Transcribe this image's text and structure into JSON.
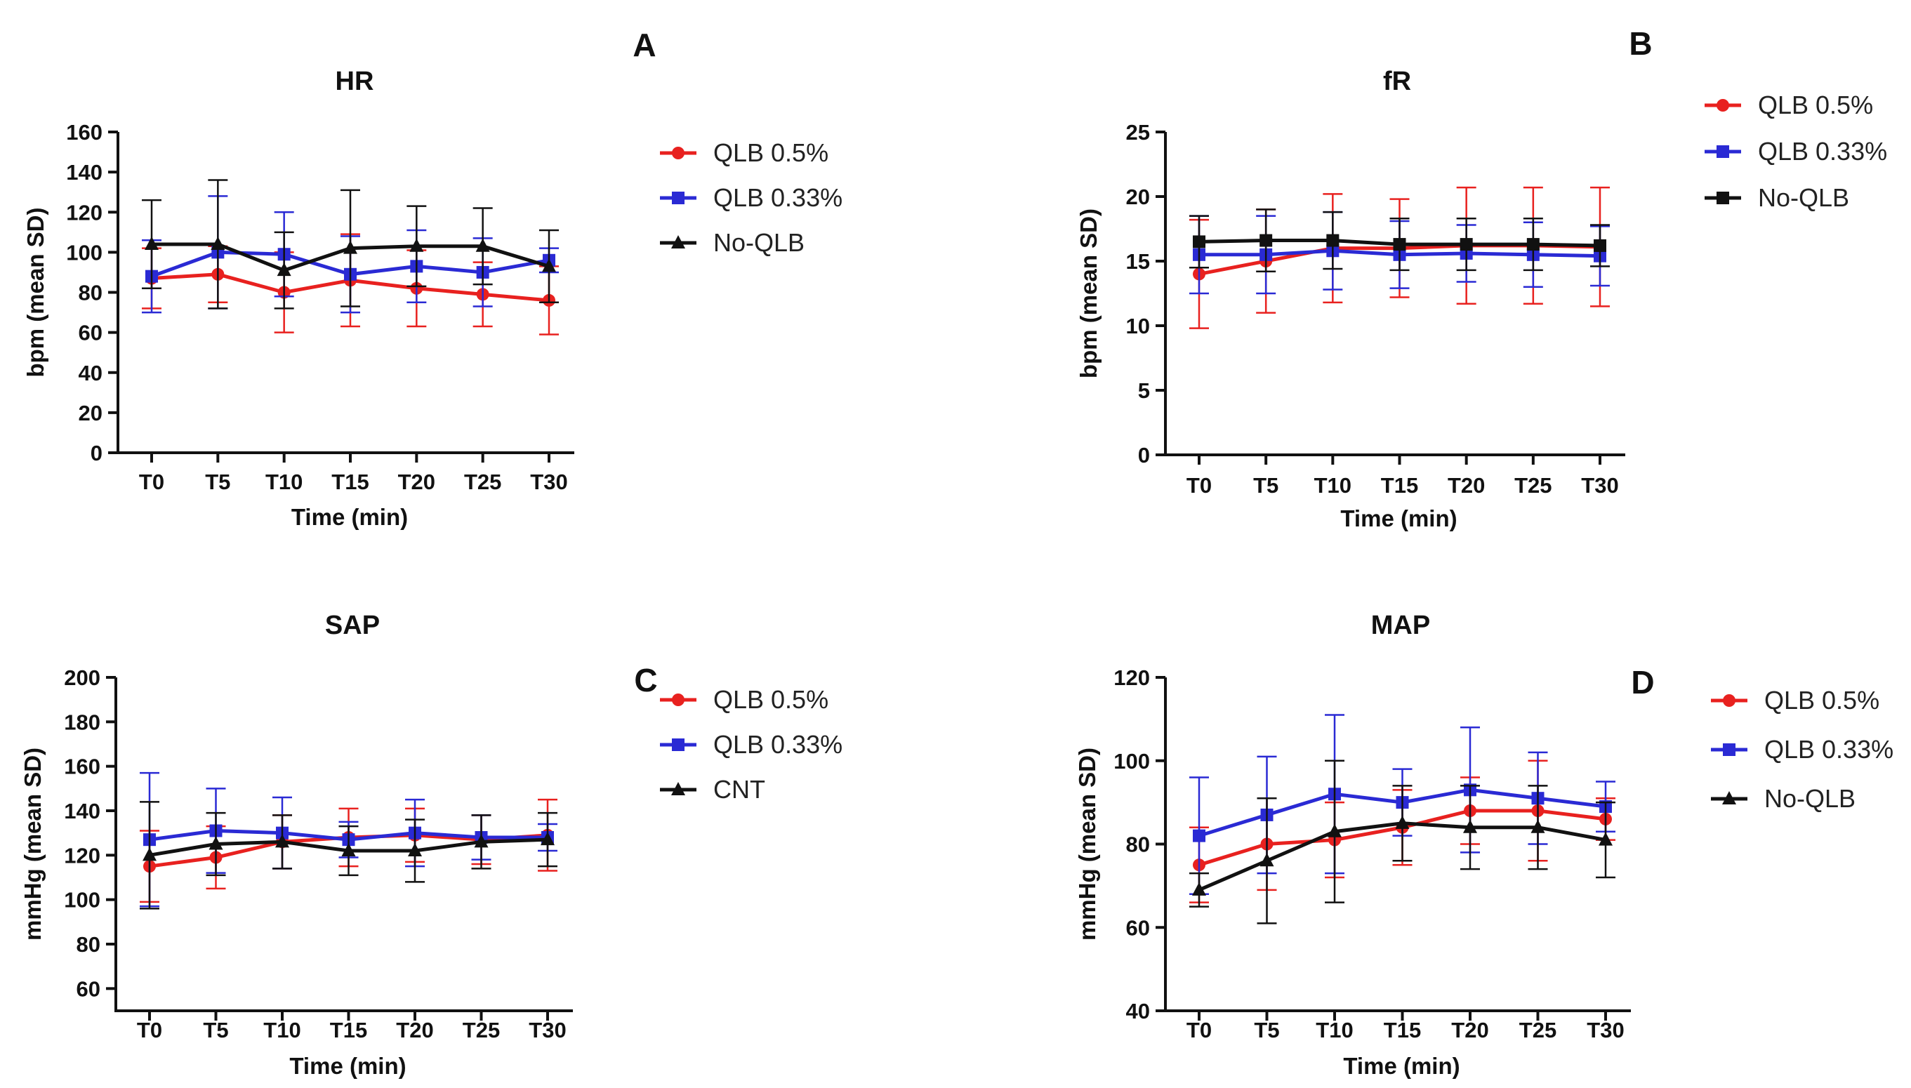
{
  "chart_data": [
    {
      "type": "line",
      "panel_letter": "A",
      "title": "HR",
      "xlabel": "Time (min)",
      "ylabel": "bpm (mean SD)",
      "categories": [
        "T0",
        "T5",
        "T10",
        "T15",
        "T20",
        "T25",
        "T30"
      ],
      "ylim": [
        0,
        160
      ],
      "yticks": [
        0,
        20,
        40,
        60,
        80,
        100,
        120,
        140,
        160
      ],
      "series": [
        {
          "name": "QLB 0.5%",
          "color": "#e8211f",
          "marker": "circle",
          "values": [
            87,
            89,
            80,
            86,
            82,
            79,
            76
          ],
          "sd": [
            15,
            14,
            20,
            23,
            19,
            16,
            17
          ]
        },
        {
          "name": "QLB 0.33%",
          "color": "#2a2ad4",
          "marker": "square",
          "values": [
            88,
            100,
            99,
            89,
            93,
            90,
            96
          ],
          "sd": [
            18,
            28,
            21,
            19,
            18,
            17,
            6
          ]
        },
        {
          "name": "No-QLB",
          "color": "#111111",
          "marker": "triangle",
          "values": [
            104,
            104,
            91,
            102,
            103,
            103,
            93
          ],
          "sd": [
            22,
            32,
            19,
            29,
            20,
            19,
            18
          ]
        }
      ]
    },
    {
      "type": "line",
      "panel_letter": "B",
      "title": "fR",
      "xlabel": "Time (min)",
      "ylabel": "bpm (mean SD)",
      "categories": [
        "T0",
        "T5",
        "T10",
        "T15",
        "T20",
        "T25",
        "T30"
      ],
      "ylim": [
        0,
        25
      ],
      "yticks": [
        0,
        5,
        10,
        15,
        20,
        25
      ],
      "series": [
        {
          "name": "QLB 0.5%",
          "color": "#e8211f",
          "marker": "circle",
          "values": [
            14,
            15,
            16,
            16,
            16.2,
            16.2,
            16.1
          ],
          "sd": [
            4.2,
            4,
            4.2,
            3.8,
            4.5,
            4.5,
            4.6
          ]
        },
        {
          "name": "QLB 0.33%",
          "color": "#2a2ad4",
          "marker": "square",
          "values": [
            15.5,
            15.5,
            15.8,
            15.5,
            15.6,
            15.5,
            15.4
          ],
          "sd": [
            3,
            3,
            3,
            2.6,
            2.2,
            2.5,
            2.3
          ]
        },
        {
          "name": "No-QLB",
          "color": "#111111",
          "marker": "square",
          "values": [
            16.5,
            16.6,
            16.6,
            16.3,
            16.3,
            16.3,
            16.2
          ],
          "sd": [
            2,
            2.4,
            2.2,
            2,
            2,
            2,
            1.6
          ]
        }
      ]
    },
    {
      "type": "line",
      "panel_letter": "C",
      "title": "SAP",
      "xlabel": "Time (min)",
      "ylabel": "mmHg (mean SD)",
      "categories": [
        "T0",
        "T5",
        "T10",
        "T15",
        "T20",
        "T25",
        "T30"
      ],
      "ylim": [
        50,
        200
      ],
      "yticks": [
        60,
        80,
        100,
        120,
        140,
        160,
        180,
        200
      ],
      "series": [
        {
          "name": "QLB 0.5%",
          "color": "#e8211f",
          "marker": "circle",
          "values": [
            115,
            119,
            126,
            128,
            129,
            127,
            129
          ],
          "sd": [
            16,
            14,
            12,
            13,
            12,
            11,
            16
          ]
        },
        {
          "name": "QLB 0.33%",
          "color": "#2a2ad4",
          "marker": "square",
          "values": [
            127,
            131,
            130,
            127,
            130,
            128,
            128
          ],
          "sd": [
            30,
            19,
            16,
            8,
            15,
            10,
            6
          ]
        },
        {
          "name": "CNT",
          "color": "#111111",
          "marker": "triangle",
          "values": [
            120,
            125,
            126,
            122,
            122,
            126,
            127
          ],
          "sd": [
            24,
            14,
            12,
            11,
            14,
            12,
            12
          ]
        }
      ]
    },
    {
      "type": "line",
      "panel_letter": "D",
      "title": "MAP",
      "xlabel": "Time (min)",
      "ylabel": "mmHg (mean SD)",
      "categories": [
        "T0",
        "T5",
        "T10",
        "T15",
        "T20",
        "T25",
        "T30"
      ],
      "ylim": [
        40,
        120
      ],
      "yticks": [
        40,
        60,
        80,
        100,
        120
      ],
      "series": [
        {
          "name": "QLB 0.5%",
          "color": "#e8211f",
          "marker": "circle",
          "values": [
            75,
            80,
            81,
            84,
            88,
            88,
            86
          ],
          "sd": [
            9,
            11,
            9,
            9,
            8,
            12,
            5
          ]
        },
        {
          "name": "QLB 0.33%",
          "color": "#2a2ad4",
          "marker": "square",
          "values": [
            82,
            87,
            92,
            90,
            93,
            91,
            89
          ],
          "sd": [
            14,
            14,
            19,
            8,
            15,
            11,
            6
          ]
        },
        {
          "name": "No-QLB",
          "color": "#111111",
          "marker": "triangle",
          "values": [
            69,
            76,
            83,
            85,
            84,
            84,
            81
          ],
          "sd": [
            4,
            15,
            17,
            9,
            10,
            10,
            9
          ]
        }
      ]
    }
  ]
}
